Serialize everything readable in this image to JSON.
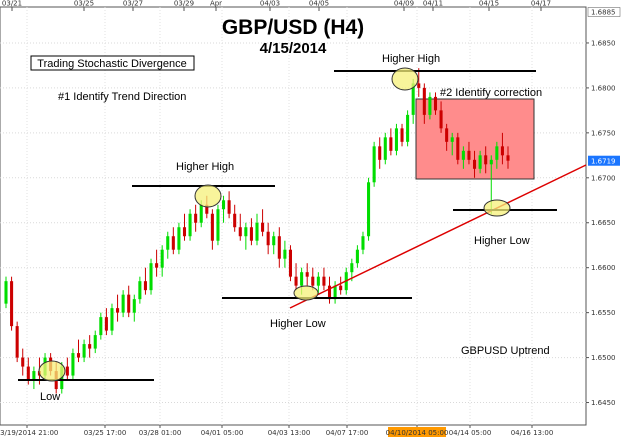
{
  "chart_data": {
    "type": "candlestick",
    "title": "GBP/USD (H4)",
    "subtitle": "4/15/2014",
    "symbol_label": "GBPUSD Uptrend",
    "colors": {
      "up": "#00dd00",
      "down": "#cc0000",
      "trendline": "#dd0000",
      "correction_box": "#ff8c8c",
      "highlight": "#f5f07a",
      "last_price_bg": "#1a75ff",
      "highlight_date_bg": "#ff9900"
    },
    "y_ticks": [
      "1.6450",
      "1.6500",
      "1.6550",
      "1.6600",
      "1.6650",
      "1.6700",
      "1.6750",
      "1.6800",
      "1.6850"
    ],
    "top_price_label": "1.6885",
    "last_price_label": "1.6719",
    "ylim": [
      1.6425,
      1.689
    ],
    "top_date_ticks": [
      "03/21",
      "03/25",
      "03/27",
      "03/29",
      "Apr",
      "04/03",
      "04/05",
      "04/09",
      "04/11",
      "04/15",
      "04/17"
    ],
    "bottom_date_ticks": [
      "03/19/2014 21:00",
      "03/25 17:00",
      "03/28 01:00",
      "04/01 05:00",
      "04/03 13:00",
      "04/07 17:00",
      "04/10/2014 05:00",
      "04/14 05:00",
      "04/16 13:00"
    ],
    "highlighted_date": "04/10/2014 05:00",
    "annotations": {
      "strategy": "Trading Stochastic Divergence",
      "step1": "#1 Identify Trend Direction",
      "step2": "#2 Identify correction",
      "low": "Low",
      "higher_low_1": "Higher Low",
      "higher_low_2": "Higher Low",
      "higher_high_1": "Higher High",
      "higher_high_2": "Higher High"
    },
    "candles": [
      [
        1.656,
        1.659,
        1.6555,
        1.6585
      ],
      [
        1.6585,
        1.659,
        1.653,
        1.6535
      ],
      [
        1.6535,
        1.654,
        1.6495,
        1.65
      ],
      [
        1.65,
        1.651,
        1.648,
        1.649
      ],
      [
        1.649,
        1.65,
        1.647,
        1.6475
      ],
      [
        1.6475,
        1.649,
        1.6465,
        1.6485
      ],
      [
        1.6485,
        1.65,
        1.647,
        1.648
      ],
      [
        1.648,
        1.6505,
        1.6475,
        1.65
      ],
      [
        1.65,
        1.6505,
        1.648,
        1.6485
      ],
      [
        1.6485,
        1.6495,
        1.646,
        1.6465
      ],
      [
        1.6465,
        1.6495,
        1.646,
        1.649
      ],
      [
        1.649,
        1.65,
        1.6475,
        1.648
      ],
      [
        1.648,
        1.651,
        1.6475,
        1.6505
      ],
      [
        1.6505,
        1.652,
        1.6495,
        1.65
      ],
      [
        1.65,
        1.652,
        1.6495,
        1.6515
      ],
      [
        1.6515,
        1.6525,
        1.65,
        1.651
      ],
      [
        1.651,
        1.653,
        1.6505,
        1.6525
      ],
      [
        1.6525,
        1.655,
        1.652,
        1.6545
      ],
      [
        1.6545,
        1.6555,
        1.6525,
        1.653
      ],
      [
        1.653,
        1.656,
        1.6525,
        1.6555
      ],
      [
        1.6555,
        1.657,
        1.654,
        1.655
      ],
      [
        1.655,
        1.6575,
        1.6545,
        1.657
      ],
      [
        1.657,
        1.658,
        1.6545,
        1.655
      ],
      [
        1.655,
        1.657,
        1.654,
        1.6565
      ],
      [
        1.6565,
        1.659,
        1.656,
        1.6585
      ],
      [
        1.6585,
        1.66,
        1.657,
        1.6575
      ],
      [
        1.6575,
        1.661,
        1.657,
        1.6605
      ],
      [
        1.6605,
        1.662,
        1.659,
        1.66
      ],
      [
        1.66,
        1.6625,
        1.659,
        1.662
      ],
      [
        1.662,
        1.664,
        1.661,
        1.6635
      ],
      [
        1.6635,
        1.6645,
        1.6615,
        1.662
      ],
      [
        1.662,
        1.665,
        1.6615,
        1.6645
      ],
      [
        1.6645,
        1.666,
        1.663,
        1.6635
      ],
      [
        1.6635,
        1.6665,
        1.663,
        1.666
      ],
      [
        1.666,
        1.667,
        1.664,
        1.665
      ],
      [
        1.665,
        1.6675,
        1.6645,
        1.667
      ],
      [
        1.667,
        1.668,
        1.6655,
        1.666
      ],
      [
        1.666,
        1.6665,
        1.662,
        1.663
      ],
      [
        1.663,
        1.667,
        1.6625,
        1.6665
      ],
      [
        1.6665,
        1.668,
        1.665,
        1.6675
      ],
      [
        1.6675,
        1.6685,
        1.6655,
        1.666
      ],
      [
        1.666,
        1.667,
        1.664,
        1.6645
      ],
      [
        1.6645,
        1.666,
        1.663,
        1.6635
      ],
      [
        1.6635,
        1.665,
        1.662,
        1.6645
      ],
      [
        1.6645,
        1.6655,
        1.6625,
        1.663
      ],
      [
        1.663,
        1.666,
        1.6625,
        1.665
      ],
      [
        1.665,
        1.6665,
        1.6635,
        1.664
      ],
      [
        1.664,
        1.665,
        1.6615,
        1.6625
      ],
      [
        1.6625,
        1.664,
        1.6615,
        1.6635
      ],
      [
        1.6635,
        1.6645,
        1.66,
        1.661
      ],
      [
        1.661,
        1.663,
        1.66,
        1.662
      ],
      [
        1.662,
        1.6625,
        1.6585,
        1.659
      ],
      [
        1.659,
        1.6605,
        1.6575,
        1.658
      ],
      [
        1.658,
        1.66,
        1.657,
        1.6595
      ],
      [
        1.6595,
        1.6605,
        1.658,
        1.659
      ],
      [
        1.659,
        1.66,
        1.6575,
        1.658
      ],
      [
        1.658,
        1.6595,
        1.657,
        1.659
      ],
      [
        1.659,
        1.66,
        1.6575,
        1.658
      ],
      [
        1.658,
        1.659,
        1.656,
        1.6565
      ],
      [
        1.6565,
        1.6585,
        1.656,
        1.658
      ],
      [
        1.658,
        1.659,
        1.657,
        1.6575
      ],
      [
        1.6575,
        1.66,
        1.657,
        1.6595
      ],
      [
        1.6595,
        1.661,
        1.6585,
        1.6605
      ],
      [
        1.6605,
        1.6625,
        1.66,
        1.662
      ],
      [
        1.662,
        1.664,
        1.6615,
        1.6635
      ],
      [
        1.6635,
        1.67,
        1.663,
        1.6695
      ],
      [
        1.6695,
        1.674,
        1.669,
        1.6735
      ],
      [
        1.6735,
        1.6745,
        1.671,
        1.672
      ],
      [
        1.672,
        1.675,
        1.6715,
        1.6745
      ],
      [
        1.6745,
        1.6755,
        1.6725,
        1.673
      ],
      [
        1.673,
        1.676,
        1.6725,
        1.6755
      ],
      [
        1.6755,
        1.676,
        1.6735,
        1.674
      ],
      [
        1.674,
        1.6775,
        1.6735,
        1.677
      ],
      [
        1.677,
        1.681,
        1.676,
        1.6805
      ],
      [
        1.6805,
        1.6822,
        1.679,
        1.68
      ],
      [
        1.68,
        1.6805,
        1.676,
        1.677
      ],
      [
        1.677,
        1.6795,
        1.6765,
        1.679
      ],
      [
        1.679,
        1.6795,
        1.677,
        1.6775
      ],
      [
        1.6775,
        1.6785,
        1.675,
        1.6755
      ],
      [
        1.6755,
        1.676,
        1.673,
        1.674
      ],
      [
        1.674,
        1.675,
        1.6725,
        1.6745
      ],
      [
        1.6745,
        1.675,
        1.6715,
        1.672
      ],
      [
        1.672,
        1.6735,
        1.671,
        1.673
      ],
      [
        1.673,
        1.674,
        1.6715,
        1.672
      ],
      [
        1.672,
        1.673,
        1.67,
        1.671
      ],
      [
        1.671,
        1.673,
        1.6705,
        1.6725
      ],
      [
        1.6725,
        1.6735,
        1.6705,
        1.6715
      ],
      [
        1.6715,
        1.6725,
        1.666,
        1.672
      ],
      [
        1.672,
        1.674,
        1.671,
        1.6735
      ],
      [
        1.6735,
        1.675,
        1.6715,
        1.6725
      ],
      [
        1.6725,
        1.6735,
        1.671,
        1.6719
      ]
    ]
  }
}
